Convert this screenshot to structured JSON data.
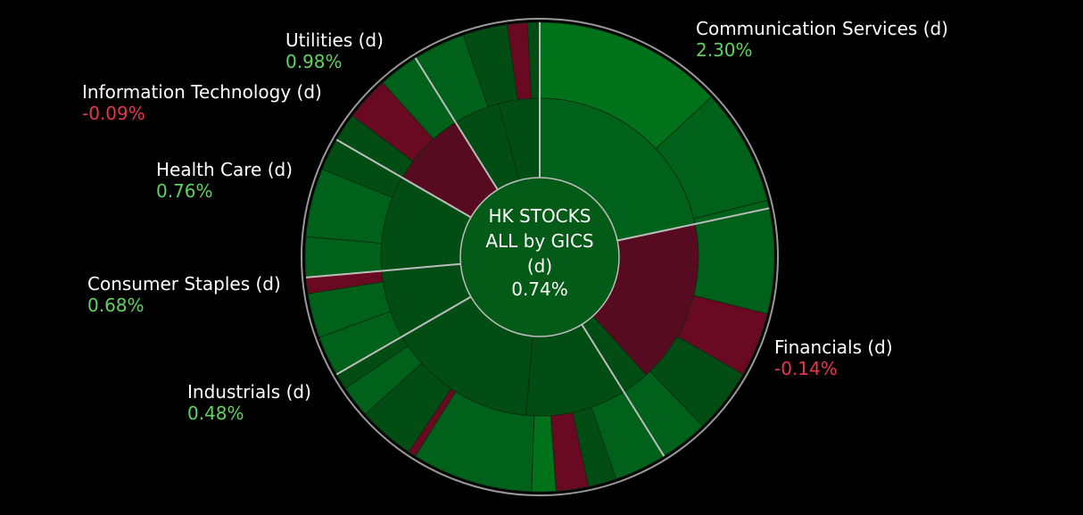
{
  "chart_data": {
    "type": "sunburst",
    "center": {
      "title_lines": [
        "HK STOCKS",
        "ALL by GICS",
        "(d)"
      ],
      "value": "0.74%"
    },
    "colors": {
      "positive_strong": "#00731a",
      "positive": "#00611a",
      "positive_dark": "#024d14",
      "negative": "#6a0a22",
      "negative_dark": "#560b20",
      "center": "#045a17",
      "separator": "#bdbdbd",
      "rim": "#9a9a9a",
      "label_positive": "#5fd35f",
      "label_negative": "#e8354d"
    },
    "sectors": [
      {
        "name": "Communication Services (d)",
        "change": "2.30%",
        "sign": "pos",
        "start": 0,
        "end": 78
      },
      {
        "name": "Financials (d)",
        "change": "-0.14%",
        "sign": "neg",
        "start": 78,
        "end": 148
      },
      {
        "name": "Industrials (d)",
        "change": "0.48%",
        "sign": "pos",
        "start": 148,
        "end": 240
      },
      {
        "name": "Consumer Staples (d)",
        "change": "0.68%",
        "sign": "pos",
        "start": 240,
        "end": 265
      },
      {
        "name": "Health Care (d)",
        "change": "0.76%",
        "sign": "pos",
        "start": 265,
        "end": 300
      },
      {
        "name": "Information Technology (d)",
        "change": "-0.09%",
        "sign": "neg",
        "start": 300,
        "end": 328
      },
      {
        "name": "Utilities (d)",
        "change": "0.98%",
        "sign": "pos",
        "start": 328,
        "end": 360
      }
    ],
    "middle_ring": [
      {
        "start": 0,
        "end": 78,
        "tone": "positive"
      },
      {
        "start": 78,
        "end": 138,
        "tone": "negative_dark"
      },
      {
        "start": 138,
        "end": 148,
        "tone": "positive_dark"
      },
      {
        "start": 148,
        "end": 185,
        "tone": "positive_dark"
      },
      {
        "start": 185,
        "end": 240,
        "tone": "positive_dark"
      },
      {
        "start": 240,
        "end": 265,
        "tone": "positive_dark"
      },
      {
        "start": 265,
        "end": 300,
        "tone": "positive_dark"
      },
      {
        "start": 300,
        "end": 328,
        "tone": "negative_dark"
      },
      {
        "start": 328,
        "end": 345,
        "tone": "positive_dark"
      },
      {
        "start": 345,
        "end": 360,
        "tone": "positive_dark"
      }
    ],
    "outer_ring": [
      {
        "start": 0,
        "end": 47,
        "tone": "positive_strong"
      },
      {
        "start": 47,
        "end": 76,
        "tone": "positive"
      },
      {
        "start": 76,
        "end": 104,
        "tone": "positive"
      },
      {
        "start": 104,
        "end": 120,
        "tone": "negative"
      },
      {
        "start": 120,
        "end": 136,
        "tone": "positive_dark"
      },
      {
        "start": 136,
        "end": 148,
        "tone": "positive"
      },
      {
        "start": 148,
        "end": 161,
        "tone": "positive"
      },
      {
        "start": 161,
        "end": 168,
        "tone": "positive_dark"
      },
      {
        "start": 168,
        "end": 176,
        "tone": "negative"
      },
      {
        "start": 176,
        "end": 182,
        "tone": "positive_strong"
      },
      {
        "start": 182,
        "end": 212,
        "tone": "positive"
      },
      {
        "start": 212,
        "end": 214,
        "tone": "negative"
      },
      {
        "start": 214,
        "end": 228,
        "tone": "positive_dark"
      },
      {
        "start": 228,
        "end": 236,
        "tone": "positive"
      },
      {
        "start": 236,
        "end": 240,
        "tone": "positive_dark"
      },
      {
        "start": 240,
        "end": 250,
        "tone": "positive"
      },
      {
        "start": 250,
        "end": 261,
        "tone": "positive"
      },
      {
        "start": 261,
        "end": 265,
        "tone": "negative"
      },
      {
        "start": 265,
        "end": 275,
        "tone": "positive"
      },
      {
        "start": 275,
        "end": 292,
        "tone": "positive"
      },
      {
        "start": 292,
        "end": 300,
        "tone": "positive_dark"
      },
      {
        "start": 300,
        "end": 307,
        "tone": "positive_dark"
      },
      {
        "start": 307,
        "end": 318,
        "tone": "negative"
      },
      {
        "start": 318,
        "end": 328,
        "tone": "positive"
      },
      {
        "start": 328,
        "end": 341,
        "tone": "positive"
      },
      {
        "start": 341,
        "end": 352,
        "tone": "positive_dark"
      },
      {
        "start": 352,
        "end": 357,
        "tone": "negative"
      },
      {
        "start": 357,
        "end": 360,
        "tone": "positive_dark"
      }
    ]
  }
}
